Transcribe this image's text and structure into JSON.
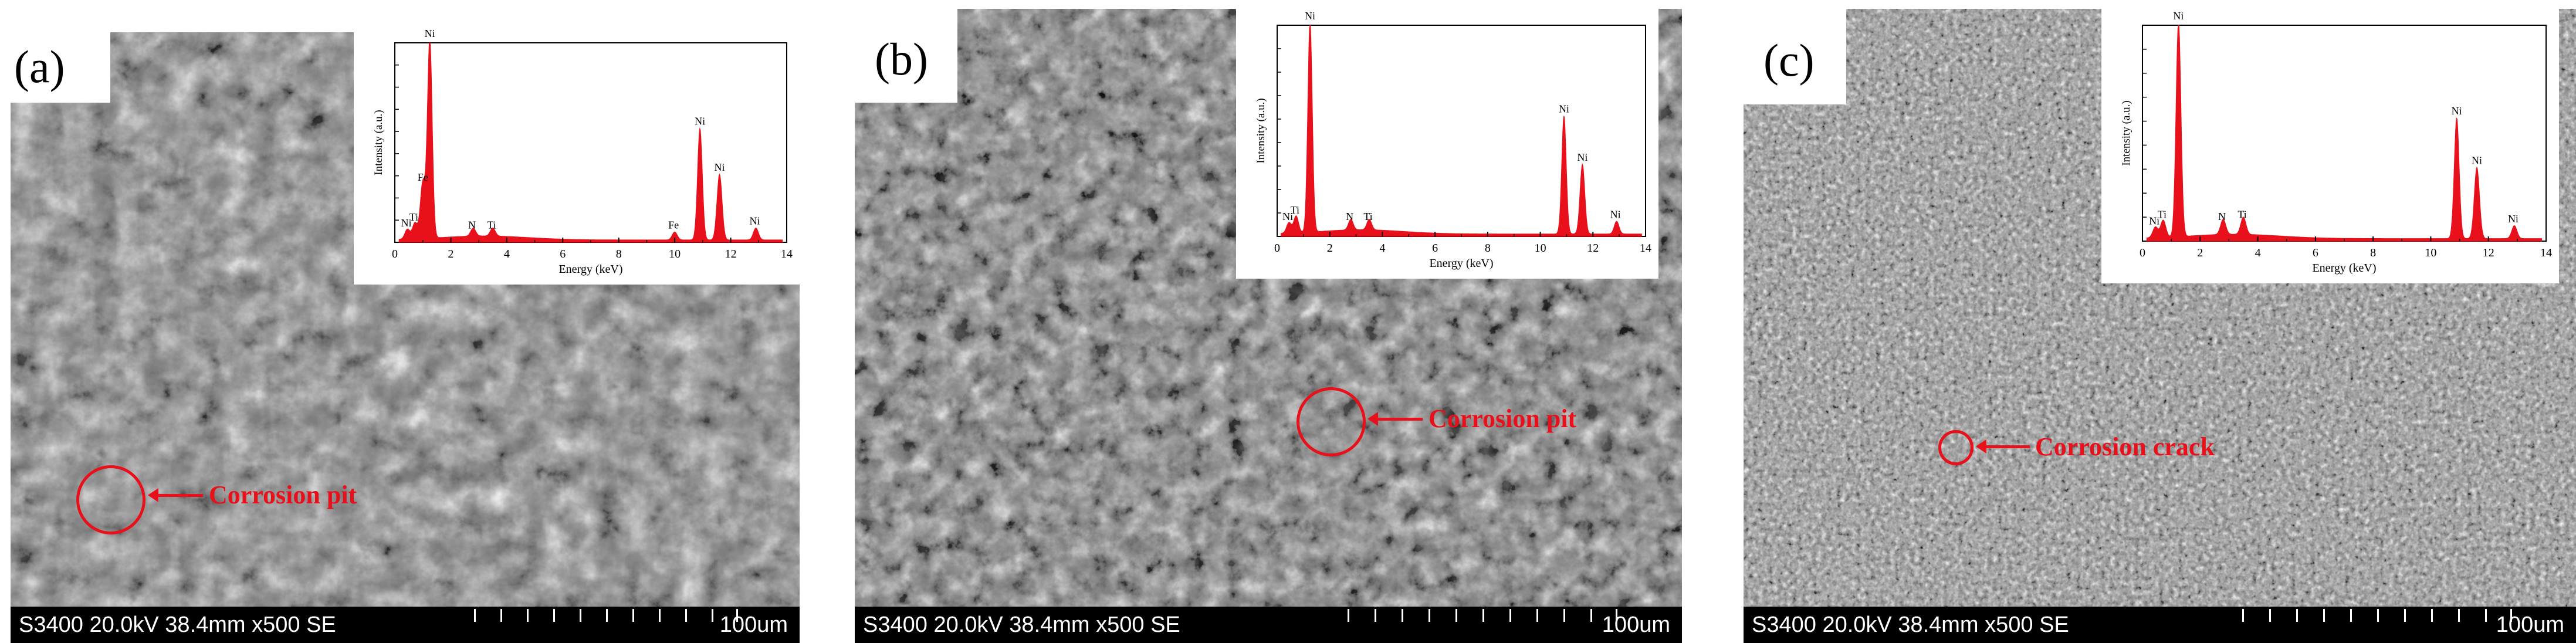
{
  "panels": [
    {
      "letter": "(a)",
      "info": "S3400 20.0kV 38.4mm x500 SE",
      "scale": "100um",
      "annotation": "Corrosion pit",
      "inset": {
        "ylabel": "Intensity (a.u.)",
        "xlabel": "Energy (keV)",
        "xticks": [
          "0",
          "2",
          "4",
          "6",
          "8",
          "10",
          "12",
          "14"
        ],
        "peaks": [
          {
            "label": "Ni",
            "x": 0.45,
            "h": 0.05
          },
          {
            "label": "Ti",
            "x": 0.72,
            "h": 0.08
          },
          {
            "label": "Fe",
            "x": 1.0,
            "h": 0.28
          },
          {
            "label": "Ni",
            "x": 1.25,
            "h": 1.0
          },
          {
            "label": "N",
            "x": 2.8,
            "h": 0.04
          },
          {
            "label": "Ti",
            "x": 3.5,
            "h": 0.04
          },
          {
            "label": "Fe",
            "x": 10.0,
            "h": 0.04
          },
          {
            "label": "Ni",
            "x": 10.9,
            "h": 0.56
          },
          {
            "label": "Ni",
            "x": 11.6,
            "h": 0.33
          },
          {
            "label": "Ni",
            "x": 12.9,
            "h": 0.06
          }
        ]
      }
    },
    {
      "letter": "(b)",
      "info": "S3400 20.0kV 38.4mm x500 SE",
      "scale": "100um",
      "annotation": "Corrosion pit",
      "inset": {
        "ylabel": "Intensity (a.u.)",
        "xlabel": "Energy (keV)",
        "xticks": [
          "0",
          "2",
          "4",
          "6",
          "8",
          "10",
          "12",
          "14"
        ],
        "peaks": [
          {
            "label": "Ni",
            "x": 0.45,
            "h": 0.05
          },
          {
            "label": "Ti",
            "x": 0.72,
            "h": 0.08
          },
          {
            "label": "Ni",
            "x": 1.25,
            "h": 1.0
          },
          {
            "label": "N",
            "x": 2.8,
            "h": 0.05
          },
          {
            "label": "Ti",
            "x": 3.5,
            "h": 0.05
          },
          {
            "label": "Ni",
            "x": 10.9,
            "h": 0.56
          },
          {
            "label": "Ni",
            "x": 11.6,
            "h": 0.33
          },
          {
            "label": "Ni",
            "x": 12.9,
            "h": 0.06
          }
        ]
      }
    },
    {
      "letter": "(c)",
      "info": "S3400 20.0kV 38.4mm x500 SE",
      "scale": "100um",
      "annotation": "Corrosion crack",
      "inset": {
        "ylabel": "Intensity (a.u.)",
        "xlabel": "Energy (keV)",
        "xticks": [
          "0",
          "2",
          "4",
          "6",
          "8",
          "10",
          "12",
          "14"
        ],
        "peaks": [
          {
            "label": "Ni",
            "x": 0.45,
            "h": 0.05
          },
          {
            "label": "Ti",
            "x": 0.72,
            "h": 0.08
          },
          {
            "label": "Ni",
            "x": 1.25,
            "h": 1.0
          },
          {
            "label": "N",
            "x": 2.8,
            "h": 0.07
          },
          {
            "label": "Ti",
            "x": 3.5,
            "h": 0.08
          },
          {
            "label": "Ni",
            "x": 10.9,
            "h": 0.56
          },
          {
            "label": "Ni",
            "x": 11.6,
            "h": 0.33
          },
          {
            "label": "Ni",
            "x": 12.9,
            "h": 0.06
          }
        ]
      }
    }
  ],
  "colors": {
    "annotation": "#e8101a",
    "spectrum": "#e8101a",
    "infobar": "#000000"
  }
}
